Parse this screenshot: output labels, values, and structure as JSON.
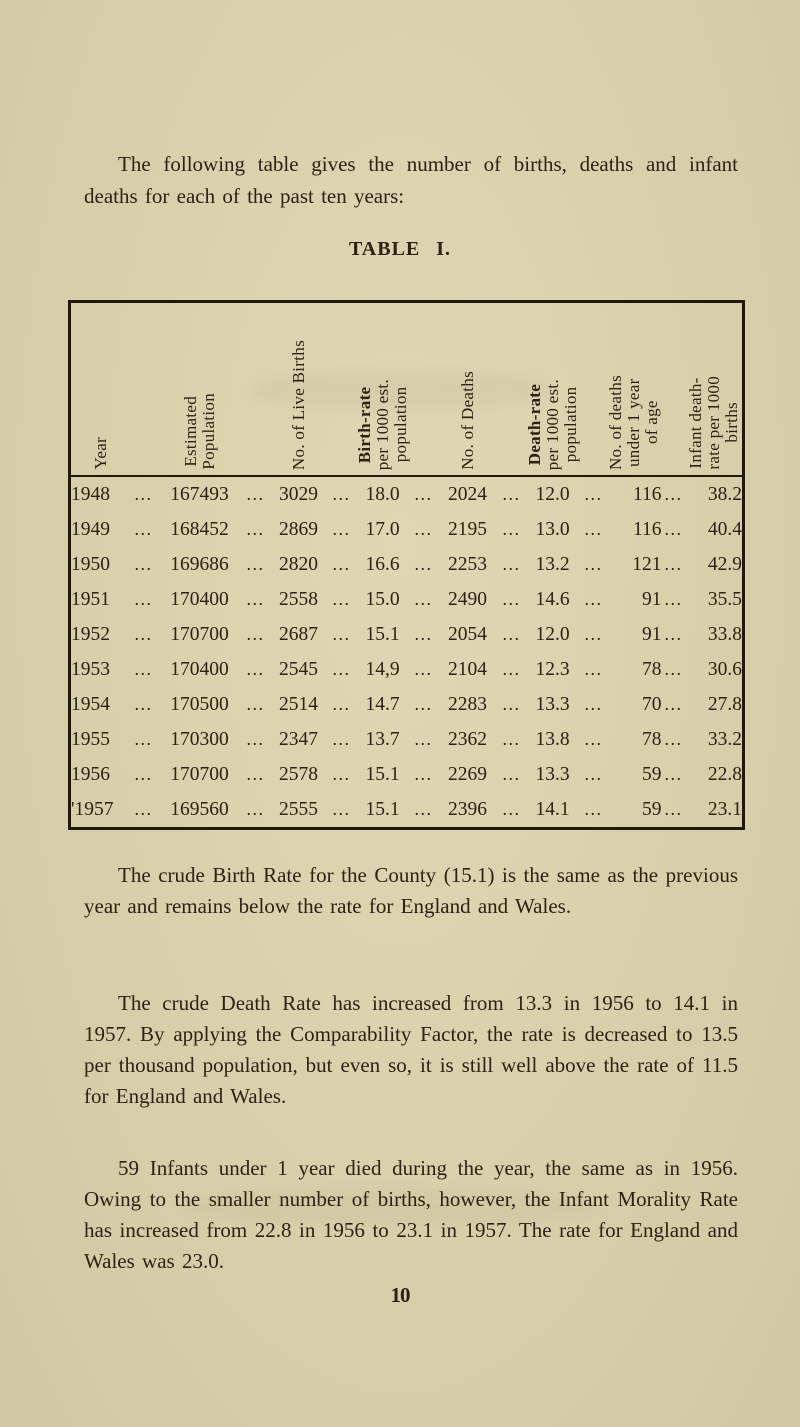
{
  "page": {
    "intro": "The following table gives the number of births, deaths and infant deaths for each of the past ten years:",
    "table_title": "TABLE I.",
    "paragraphs": [
      "The crude Birth Rate for the County (15.1) is the same as the previous year and remains below the rate for England and Wales.",
      "The crude Death Rate has increased from 13.3 in 1956 to 14.1 in 1957. By applying the Comparability Factor, the rate is decreased to 13.5 per thousand population, but even so, it is still well above the rate of 11.5 for England and Wales.",
      "59 Infants under 1 year died during the year, the same as in 1956. Owing to the smaller number of births, however, the Infant Morality Rate has increased from 22.8 in 1956 to 23.1 in 1957. The rate for England and Wales was 23.0.",
      "10"
    ],
    "page_number": "10"
  },
  "colors": {
    "paper": "#d7d1ab",
    "ink": "#2b2212"
  },
  "table": {
    "dot_separator": "...",
    "columns": [
      {
        "id": "year",
        "label_lines": [
          "Year"
        ],
        "bold_first": false
      },
      {
        "id": "population",
        "label_lines": [
          "Estimated",
          "Population"
        ],
        "bold_first": false
      },
      {
        "id": "live_births",
        "label_lines": [
          "No. of Live Births"
        ],
        "bold_first": false
      },
      {
        "id": "birth_rate",
        "label_lines": [
          "Birth-rate",
          "per 1000 est.",
          "population"
        ],
        "bold_first": true
      },
      {
        "id": "deaths",
        "label_lines": [
          "No. of Deaths"
        ],
        "bold_first": false
      },
      {
        "id": "death_rate",
        "label_lines": [
          "Death-rate",
          "per 1000 est.",
          "population"
        ],
        "bold_first": true
      },
      {
        "id": "infant_deaths",
        "label_lines": [
          "No. of deaths",
          "under 1 year",
          "of age"
        ],
        "bold_first": false
      },
      {
        "id": "infant_death_rate",
        "label_lines": [
          "Infant death-",
          "rate per 1000",
          "births"
        ],
        "bold_first": false
      }
    ],
    "rows": [
      [
        "1948",
        "167493",
        "3029",
        "18.0",
        "2024",
        "12.0",
        "116",
        "38.2"
      ],
      [
        "1949",
        "168452",
        "2869",
        "17.0",
        "2195",
        "13.0",
        "116",
        "40.4"
      ],
      [
        "1950",
        "169686",
        "2820",
        "16.6",
        "2253",
        "13.2",
        "121",
        "42.9"
      ],
      [
        "1951",
        "170400",
        "2558",
        "15.0",
        "2490",
        "14.6",
        "91",
        "35.5"
      ],
      [
        "1952",
        "170700",
        "2687",
        "15.1",
        "2054",
        "12.0",
        "91",
        "33.8"
      ],
      [
        "1953",
        "170400",
        "2545",
        "14,9",
        "2104",
        "12.3",
        "78",
        "30.6"
      ],
      [
        "1954",
        "170500",
        "2514",
        "14.7",
        "2283",
        "13.3",
        "70",
        "27.8"
      ],
      [
        "1955",
        "170300",
        "2347",
        "13.7",
        "2362",
        "13.8",
        "78",
        "33.2"
      ],
      [
        "1956",
        "170700",
        "2578",
        "15.1",
        "2269",
        "13.3",
        "59",
        "22.8"
      ],
      [
        "'1957",
        "169560",
        "2555",
        "15.1",
        "2396",
        "14.1",
        "59",
        "23.1"
      ]
    ]
  }
}
